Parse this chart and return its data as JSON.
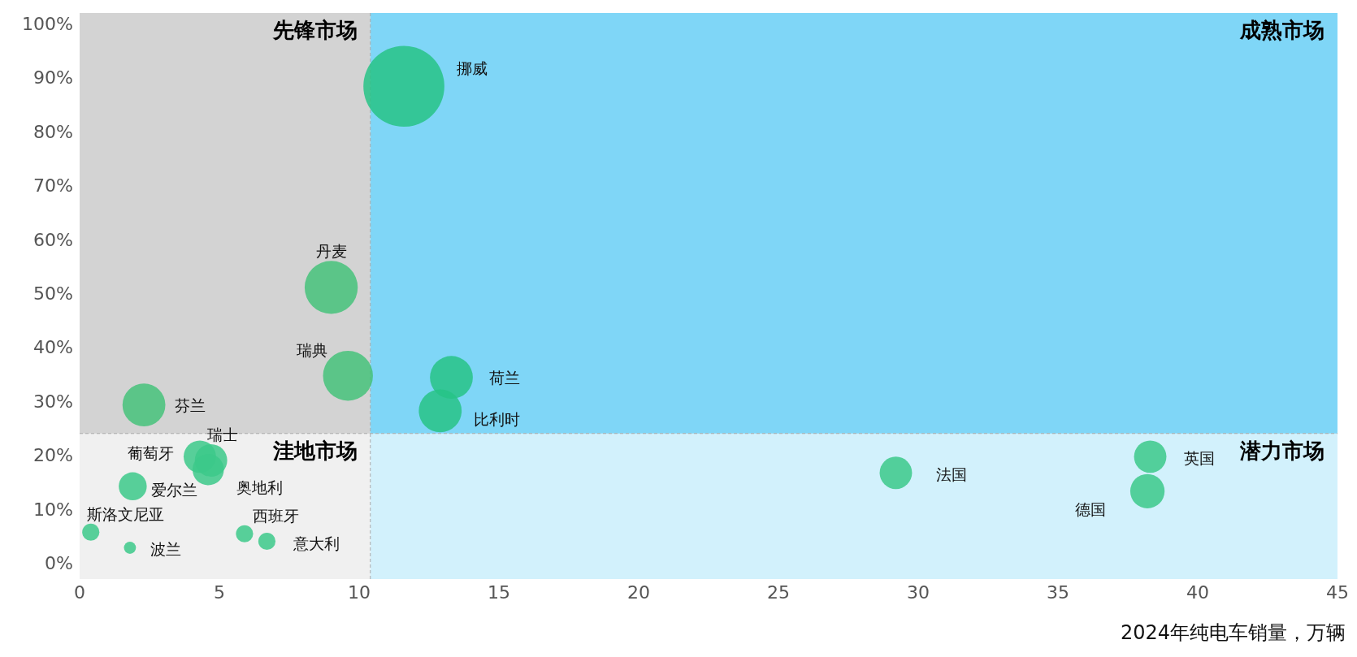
{
  "chart_data": {
    "type": "bubble",
    "xlabel": "2024年纯电车销量，万辆",
    "xlim": [
      0,
      45
    ],
    "xticks": [
      0,
      5,
      10,
      15,
      20,
      25,
      30,
      35,
      40,
      45
    ],
    "ylim": [
      -3,
      102
    ],
    "yticks": [
      {
        "value": 0,
        "label": "0%"
      },
      {
        "value": 10,
        "label": "10%"
      },
      {
        "value": 20,
        "label": "20%"
      },
      {
        "value": 30,
        "label": "30%"
      },
      {
        "value": 40,
        "label": "40%"
      },
      {
        "value": 50,
        "label": "50%"
      },
      {
        "value": 60,
        "label": "60%"
      },
      {
        "value": 70,
        "label": "70%"
      },
      {
        "value": 80,
        "label": "80%"
      },
      {
        "value": 90,
        "label": "90%"
      },
      {
        "value": 100,
        "label": "100%"
      }
    ],
    "grid": false,
    "legend": false,
    "bands": [
      {
        "axis": "x",
        "from": 0,
        "to": 10.4,
        "color": "#d3d3d3"
      },
      {
        "axis": "x",
        "from": 10.4,
        "to": 45,
        "color": "#7fd6f7"
      },
      {
        "axis": "y",
        "from": -3,
        "to": 24,
        "color": "#ffffff"
      }
    ],
    "ref_lines": [
      {
        "axis": "x",
        "value": 10.4,
        "color": "#aaaaaa",
        "line_style": "dashed"
      },
      {
        "axis": "y",
        "value": 24,
        "color": "#aaaaaa",
        "line_style": "dashed"
      }
    ],
    "annotations": [
      "先锋市场",
      "成熟市场",
      "洼地市场",
      "潜力市场"
    ],
    "series": [
      {
        "name": "挪威",
        "color": "#27c386",
        "x": [
          11.6
        ],
        "values": [
          88.4
        ],
        "sizes": [
          1
        ]
      },
      {
        "name": "丹麦",
        "color": "#45c27a",
        "x": [
          9.0
        ],
        "values": [
          51.1
        ],
        "sizes": [
          0.43
        ]
      },
      {
        "name": "瑞典",
        "color": "#45c27a",
        "x": [
          9.6
        ],
        "values": [
          34.7
        ],
        "sizes": [
          0.38
        ]
      },
      {
        "name": "芬兰",
        "color": "#45c27a",
        "x": [
          2.3
        ],
        "values": [
          29.3
        ],
        "sizes": [
          0.28
        ]
      },
      {
        "name": "荷兰",
        "color": "#27c386",
        "x": [
          13.3
        ],
        "values": [
          34.4
        ],
        "sizes": [
          0.28
        ]
      },
      {
        "name": "比利时",
        "color": "#27c386",
        "x": [
          12.9
        ],
        "values": [
          28.2
        ],
        "sizes": [
          0.28
        ]
      },
      {
        "name": "葡萄牙",
        "color": "#3cc98a",
        "x": [
          4.3
        ],
        "values": [
          19.7
        ],
        "sizes": [
          0.16
        ]
      },
      {
        "name": "瑞士",
        "color": "#3cc98a",
        "x": [
          4.7
        ],
        "values": [
          19.0
        ],
        "sizes": [
          0.16
        ]
      },
      {
        "name": "奥地利",
        "color": "#3cc98a",
        "x": [
          4.6
        ],
        "values": [
          17.3
        ],
        "sizes": [
          0.15
        ]
      },
      {
        "name": "爱尔兰",
        "color": "#3cc98a",
        "x": [
          1.9
        ],
        "values": [
          14.2
        ],
        "sizes": [
          0.12
        ]
      },
      {
        "name": "斯洛文尼亚",
        "color": "#3cc98a",
        "x": [
          0.4
        ],
        "values": [
          5.7
        ],
        "sizes": [
          0.045
        ]
      },
      {
        "name": "波兰",
        "color": "#3cc98a",
        "x": [
          1.8
        ],
        "values": [
          2.8
        ],
        "sizes": [
          0.022
        ]
      },
      {
        "name": "西班牙",
        "color": "#3cc98a",
        "x": [
          5.9
        ],
        "values": [
          5.4
        ],
        "sizes": [
          0.045
        ]
      },
      {
        "name": "意大利",
        "color": "#3cc98a",
        "x": [
          6.7
        ],
        "values": [
          4.0
        ],
        "sizes": [
          0.045
        ]
      },
      {
        "name": "法国",
        "color": "#3cc98a",
        "x": [
          29.2
        ],
        "values": [
          16.7
        ],
        "sizes": [
          0.16
        ]
      },
      {
        "name": "英国",
        "color": "#3cc98a",
        "x": [
          38.3
        ],
        "values": [
          19.7
        ],
        "sizes": [
          0.16
        ]
      },
      {
        "name": "德国",
        "color": "#3cc98a",
        "x": [
          38.2
        ],
        "values": [
          13.3
        ],
        "sizes": [
          0.18
        ]
      }
    ]
  }
}
